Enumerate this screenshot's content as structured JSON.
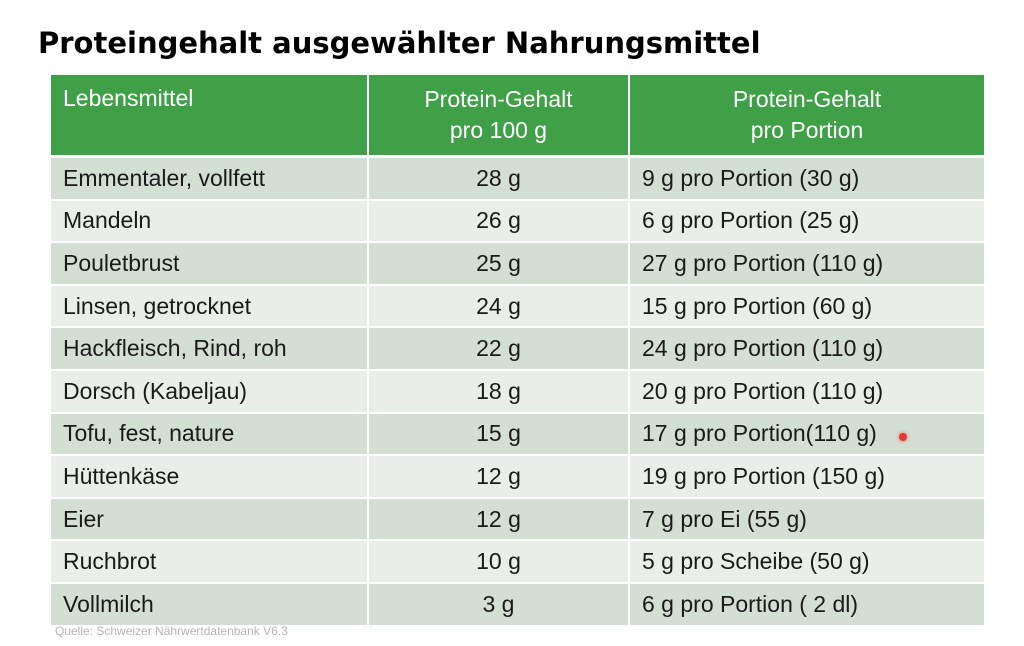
{
  "title": "Proteingehalt ausgewählter Nahrungsmittel",
  "table": {
    "headers": {
      "food": "Lebensmittel",
      "per100_line1": "Protein-Gehalt",
      "per100_line2": "pro 100 g",
      "portion_line1": "Protein-Gehalt",
      "portion_line2": "pro Portion"
    },
    "header_color": "#3fa047",
    "rows": [
      {
        "food": "Emmentaler, vollfett",
        "per100": "28 g",
        "portion": "9 g pro Portion (30 g)"
      },
      {
        "food": "Mandeln",
        "per100": "26 g",
        "portion": "6 g pro Portion (25 g)"
      },
      {
        "food": "Pouletbrust",
        "per100": "25 g",
        "portion": "27 g pro Portion (110 g)"
      },
      {
        "food": "Linsen, getrocknet",
        "per100": "24 g",
        "portion": "15 g pro Portion (60 g)"
      },
      {
        "food": "Hackfleisch, Rind, roh",
        "per100": "22 g",
        "portion": "24 g pro Portion (110 g)"
      },
      {
        "food": "Dorsch (Kabeljau)",
        "per100": "18 g",
        "portion": "20 g pro Portion (110 g)"
      },
      {
        "food": "Tofu, fest, nature",
        "per100": "15 g",
        "portion": "17 g pro Portion(110 g)"
      },
      {
        "food": "Hüttenkäse",
        "per100": "12 g",
        "portion": "19 g pro Portion (150 g)"
      },
      {
        "food": "Eier",
        "per100": "12 g",
        "portion": "7 g pro Ei (55 g)"
      },
      {
        "food": "Ruchbrot",
        "per100": "10 g",
        "portion": "5 g pro Scheibe (50 g)"
      },
      {
        "food": "Vollmilch",
        "per100": "3 g",
        "portion": "6 g pro Portion ( 2 dl)"
      }
    ]
  },
  "source": "Quelle: Schweizer Nährwertdatenbank V6.3"
}
